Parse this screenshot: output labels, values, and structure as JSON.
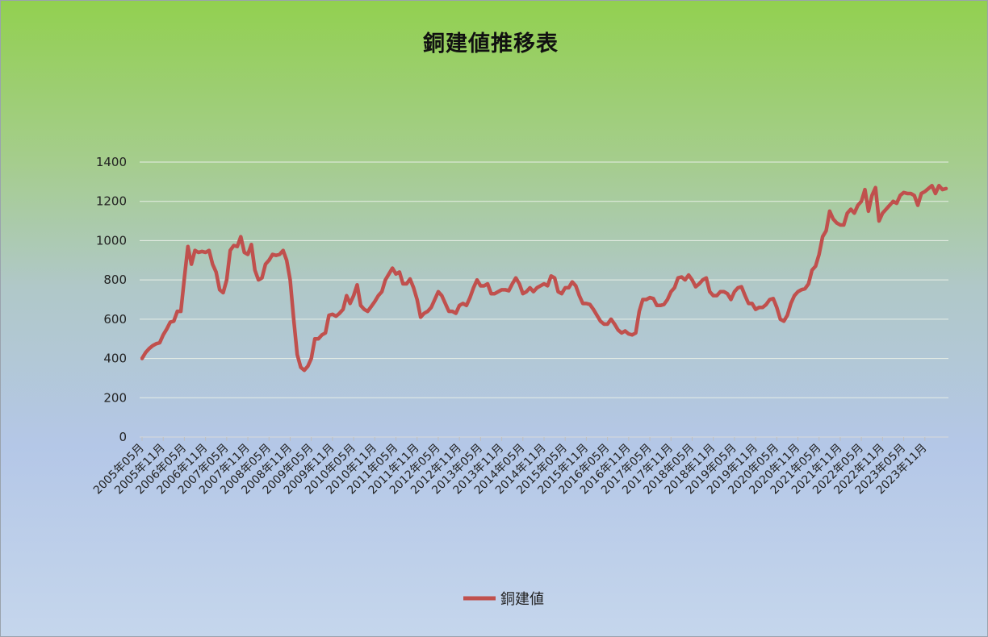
{
  "chart_data": {
    "type": "line",
    "title": "銅建値推移表",
    "legend": {
      "position": "bottom",
      "entries": [
        "銅建値"
      ]
    },
    "colors": {
      "series": "#c0504d",
      "grid": "#e8efe6"
    },
    "grid": true,
    "ylim": [
      0,
      1400
    ],
    "yticks": [
      "0",
      "200",
      "400",
      "600",
      "800",
      "1000",
      "1200",
      "1400"
    ],
    "x_tick_labels": [
      "2005年05月",
      "2005年11月",
      "2006年05月",
      "2006年11月",
      "2007年05月",
      "2007年11月",
      "2008年05月",
      "2008年11月",
      "2009年05月",
      "2009年11月",
      "2010年05月",
      "2010年11月",
      "2011年05月",
      "2011年11月",
      "2012年05月",
      "2012年11月",
      "2013年05月",
      "2013年11月",
      "2014年05月",
      "2014年11月",
      "2015年05月",
      "2015年11月",
      "2016年05月",
      "2016年11月",
      "2017年05月",
      "2017年11月",
      "2018年05月",
      "2018年11月",
      "2019年05月",
      "2019年11月",
      "2020年05月",
      "2020年11月",
      "2021年05月",
      "2021年11月",
      "2022年05月",
      "2022年11月",
      "2023年05月",
      "2023年11月"
    ],
    "series": [
      {
        "name": "銅建値",
        "start": "2005年05月",
        "frequency": "monthly",
        "values": [
          400,
          430,
          450,
          465,
          475,
          480,
          520,
          550,
          585,
          590,
          640,
          640,
          810,
          970,
          880,
          950,
          940,
          945,
          940,
          950,
          880,
          840,
          750,
          735,
          800,
          950,
          975,
          970,
          1020,
          940,
          930,
          980,
          850,
          800,
          810,
          880,
          900,
          930,
          925,
          930,
          950,
          900,
          800,
          600,
          420,
          355,
          340,
          360,
          400,
          500,
          500,
          520,
          530,
          620,
          625,
          615,
          630,
          650,
          720,
          680,
          720,
          775,
          670,
          650,
          640,
          665,
          690,
          720,
          740,
          800,
          830,
          860,
          830,
          840,
          780,
          780,
          805,
          760,
          700,
          610,
          630,
          640,
          660,
          700,
          740,
          720,
          680,
          640,
          640,
          630,
          670,
          680,
          670,
          710,
          760,
          800,
          770,
          770,
          780,
          730,
          730,
          740,
          750,
          750,
          745,
          780,
          810,
          780,
          730,
          740,
          760,
          740,
          760,
          770,
          780,
          770,
          820,
          810,
          740,
          730,
          760,
          760,
          790,
          770,
          720,
          680,
          680,
          675,
          650,
          620,
          590,
          575,
          575,
          600,
          575,
          545,
          530,
          540,
          525,
          520,
          530,
          640,
          700,
          700,
          710,
          705,
          670,
          670,
          675,
          700,
          740,
          760,
          810,
          815,
          800,
          825,
          800,
          765,
          780,
          800,
          810,
          740,
          720,
          720,
          740,
          740,
          730,
          700,
          740,
          760,
          765,
          720,
          680,
          680,
          650,
          660,
          660,
          675,
          700,
          705,
          660,
          600,
          590,
          620,
          680,
          720,
          740,
          750,
          755,
          780,
          850,
          870,
          930,
          1020,
          1050,
          1150,
          1110,
          1090,
          1080,
          1080,
          1140,
          1160,
          1140,
          1180,
          1200,
          1260,
          1150,
          1230,
          1270,
          1100,
          1140,
          1160,
          1180,
          1200,
          1190,
          1230,
          1245,
          1240,
          1240,
          1230,
          1180,
          1240,
          1250,
          1265,
          1280,
          1240,
          1280,
          1260,
          1265
        ]
      }
    ]
  }
}
